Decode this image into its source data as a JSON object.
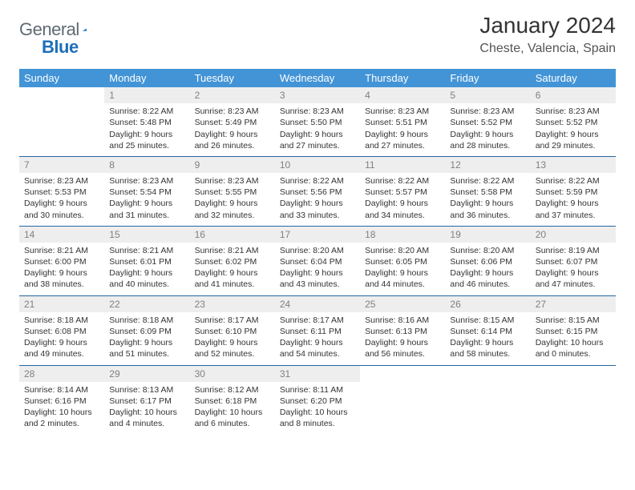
{
  "branding": {
    "part1": "General",
    "part2": "Blue",
    "logo_color": "#1e6fb8"
  },
  "title": "January 2024",
  "location": "Cheste, Valencia, Spain",
  "colors": {
    "header": "#4394d6",
    "divider": "#2865a3",
    "date_bg": "#eeeeee"
  },
  "weekdays": [
    "Sunday",
    "Monday",
    "Tuesday",
    "Wednesday",
    "Thursday",
    "Friday",
    "Saturday"
  ],
  "weeks": [
    [
      {
        "n": "",
        "sr": "",
        "ss": "",
        "dl1": "",
        "dl2": ""
      },
      {
        "n": "1",
        "sr": "Sunrise: 8:22 AM",
        "ss": "Sunset: 5:48 PM",
        "dl1": "Daylight: 9 hours",
        "dl2": "and 25 minutes."
      },
      {
        "n": "2",
        "sr": "Sunrise: 8:23 AM",
        "ss": "Sunset: 5:49 PM",
        "dl1": "Daylight: 9 hours",
        "dl2": "and 26 minutes."
      },
      {
        "n": "3",
        "sr": "Sunrise: 8:23 AM",
        "ss": "Sunset: 5:50 PM",
        "dl1": "Daylight: 9 hours",
        "dl2": "and 27 minutes."
      },
      {
        "n": "4",
        "sr": "Sunrise: 8:23 AM",
        "ss": "Sunset: 5:51 PM",
        "dl1": "Daylight: 9 hours",
        "dl2": "and 27 minutes."
      },
      {
        "n": "5",
        "sr": "Sunrise: 8:23 AM",
        "ss": "Sunset: 5:52 PM",
        "dl1": "Daylight: 9 hours",
        "dl2": "and 28 minutes."
      },
      {
        "n": "6",
        "sr": "Sunrise: 8:23 AM",
        "ss": "Sunset: 5:52 PM",
        "dl1": "Daylight: 9 hours",
        "dl2": "and 29 minutes."
      }
    ],
    [
      {
        "n": "7",
        "sr": "Sunrise: 8:23 AM",
        "ss": "Sunset: 5:53 PM",
        "dl1": "Daylight: 9 hours",
        "dl2": "and 30 minutes."
      },
      {
        "n": "8",
        "sr": "Sunrise: 8:23 AM",
        "ss": "Sunset: 5:54 PM",
        "dl1": "Daylight: 9 hours",
        "dl2": "and 31 minutes."
      },
      {
        "n": "9",
        "sr": "Sunrise: 8:23 AM",
        "ss": "Sunset: 5:55 PM",
        "dl1": "Daylight: 9 hours",
        "dl2": "and 32 minutes."
      },
      {
        "n": "10",
        "sr": "Sunrise: 8:22 AM",
        "ss": "Sunset: 5:56 PM",
        "dl1": "Daylight: 9 hours",
        "dl2": "and 33 minutes."
      },
      {
        "n": "11",
        "sr": "Sunrise: 8:22 AM",
        "ss": "Sunset: 5:57 PM",
        "dl1": "Daylight: 9 hours",
        "dl2": "and 34 minutes."
      },
      {
        "n": "12",
        "sr": "Sunrise: 8:22 AM",
        "ss": "Sunset: 5:58 PM",
        "dl1": "Daylight: 9 hours",
        "dl2": "and 36 minutes."
      },
      {
        "n": "13",
        "sr": "Sunrise: 8:22 AM",
        "ss": "Sunset: 5:59 PM",
        "dl1": "Daylight: 9 hours",
        "dl2": "and 37 minutes."
      }
    ],
    [
      {
        "n": "14",
        "sr": "Sunrise: 8:21 AM",
        "ss": "Sunset: 6:00 PM",
        "dl1": "Daylight: 9 hours",
        "dl2": "and 38 minutes."
      },
      {
        "n": "15",
        "sr": "Sunrise: 8:21 AM",
        "ss": "Sunset: 6:01 PM",
        "dl1": "Daylight: 9 hours",
        "dl2": "and 40 minutes."
      },
      {
        "n": "16",
        "sr": "Sunrise: 8:21 AM",
        "ss": "Sunset: 6:02 PM",
        "dl1": "Daylight: 9 hours",
        "dl2": "and 41 minutes."
      },
      {
        "n": "17",
        "sr": "Sunrise: 8:20 AM",
        "ss": "Sunset: 6:04 PM",
        "dl1": "Daylight: 9 hours",
        "dl2": "and 43 minutes."
      },
      {
        "n": "18",
        "sr": "Sunrise: 8:20 AM",
        "ss": "Sunset: 6:05 PM",
        "dl1": "Daylight: 9 hours",
        "dl2": "and 44 minutes."
      },
      {
        "n": "19",
        "sr": "Sunrise: 8:20 AM",
        "ss": "Sunset: 6:06 PM",
        "dl1": "Daylight: 9 hours",
        "dl2": "and 46 minutes."
      },
      {
        "n": "20",
        "sr": "Sunrise: 8:19 AM",
        "ss": "Sunset: 6:07 PM",
        "dl1": "Daylight: 9 hours",
        "dl2": "and 47 minutes."
      }
    ],
    [
      {
        "n": "21",
        "sr": "Sunrise: 8:18 AM",
        "ss": "Sunset: 6:08 PM",
        "dl1": "Daylight: 9 hours",
        "dl2": "and 49 minutes."
      },
      {
        "n": "22",
        "sr": "Sunrise: 8:18 AM",
        "ss": "Sunset: 6:09 PM",
        "dl1": "Daylight: 9 hours",
        "dl2": "and 51 minutes."
      },
      {
        "n": "23",
        "sr": "Sunrise: 8:17 AM",
        "ss": "Sunset: 6:10 PM",
        "dl1": "Daylight: 9 hours",
        "dl2": "and 52 minutes."
      },
      {
        "n": "24",
        "sr": "Sunrise: 8:17 AM",
        "ss": "Sunset: 6:11 PM",
        "dl1": "Daylight: 9 hours",
        "dl2": "and 54 minutes."
      },
      {
        "n": "25",
        "sr": "Sunrise: 8:16 AM",
        "ss": "Sunset: 6:13 PM",
        "dl1": "Daylight: 9 hours",
        "dl2": "and 56 minutes."
      },
      {
        "n": "26",
        "sr": "Sunrise: 8:15 AM",
        "ss": "Sunset: 6:14 PM",
        "dl1": "Daylight: 9 hours",
        "dl2": "and 58 minutes."
      },
      {
        "n": "27",
        "sr": "Sunrise: 8:15 AM",
        "ss": "Sunset: 6:15 PM",
        "dl1": "Daylight: 10 hours",
        "dl2": "and 0 minutes."
      }
    ],
    [
      {
        "n": "28",
        "sr": "Sunrise: 8:14 AM",
        "ss": "Sunset: 6:16 PM",
        "dl1": "Daylight: 10 hours",
        "dl2": "and 2 minutes."
      },
      {
        "n": "29",
        "sr": "Sunrise: 8:13 AM",
        "ss": "Sunset: 6:17 PM",
        "dl1": "Daylight: 10 hours",
        "dl2": "and 4 minutes."
      },
      {
        "n": "30",
        "sr": "Sunrise: 8:12 AM",
        "ss": "Sunset: 6:18 PM",
        "dl1": "Daylight: 10 hours",
        "dl2": "and 6 minutes."
      },
      {
        "n": "31",
        "sr": "Sunrise: 8:11 AM",
        "ss": "Sunset: 6:20 PM",
        "dl1": "Daylight: 10 hours",
        "dl2": "and 8 minutes."
      },
      {
        "n": "",
        "sr": "",
        "ss": "",
        "dl1": "",
        "dl2": ""
      },
      {
        "n": "",
        "sr": "",
        "ss": "",
        "dl1": "",
        "dl2": ""
      },
      {
        "n": "",
        "sr": "",
        "ss": "",
        "dl1": "",
        "dl2": ""
      }
    ]
  ]
}
